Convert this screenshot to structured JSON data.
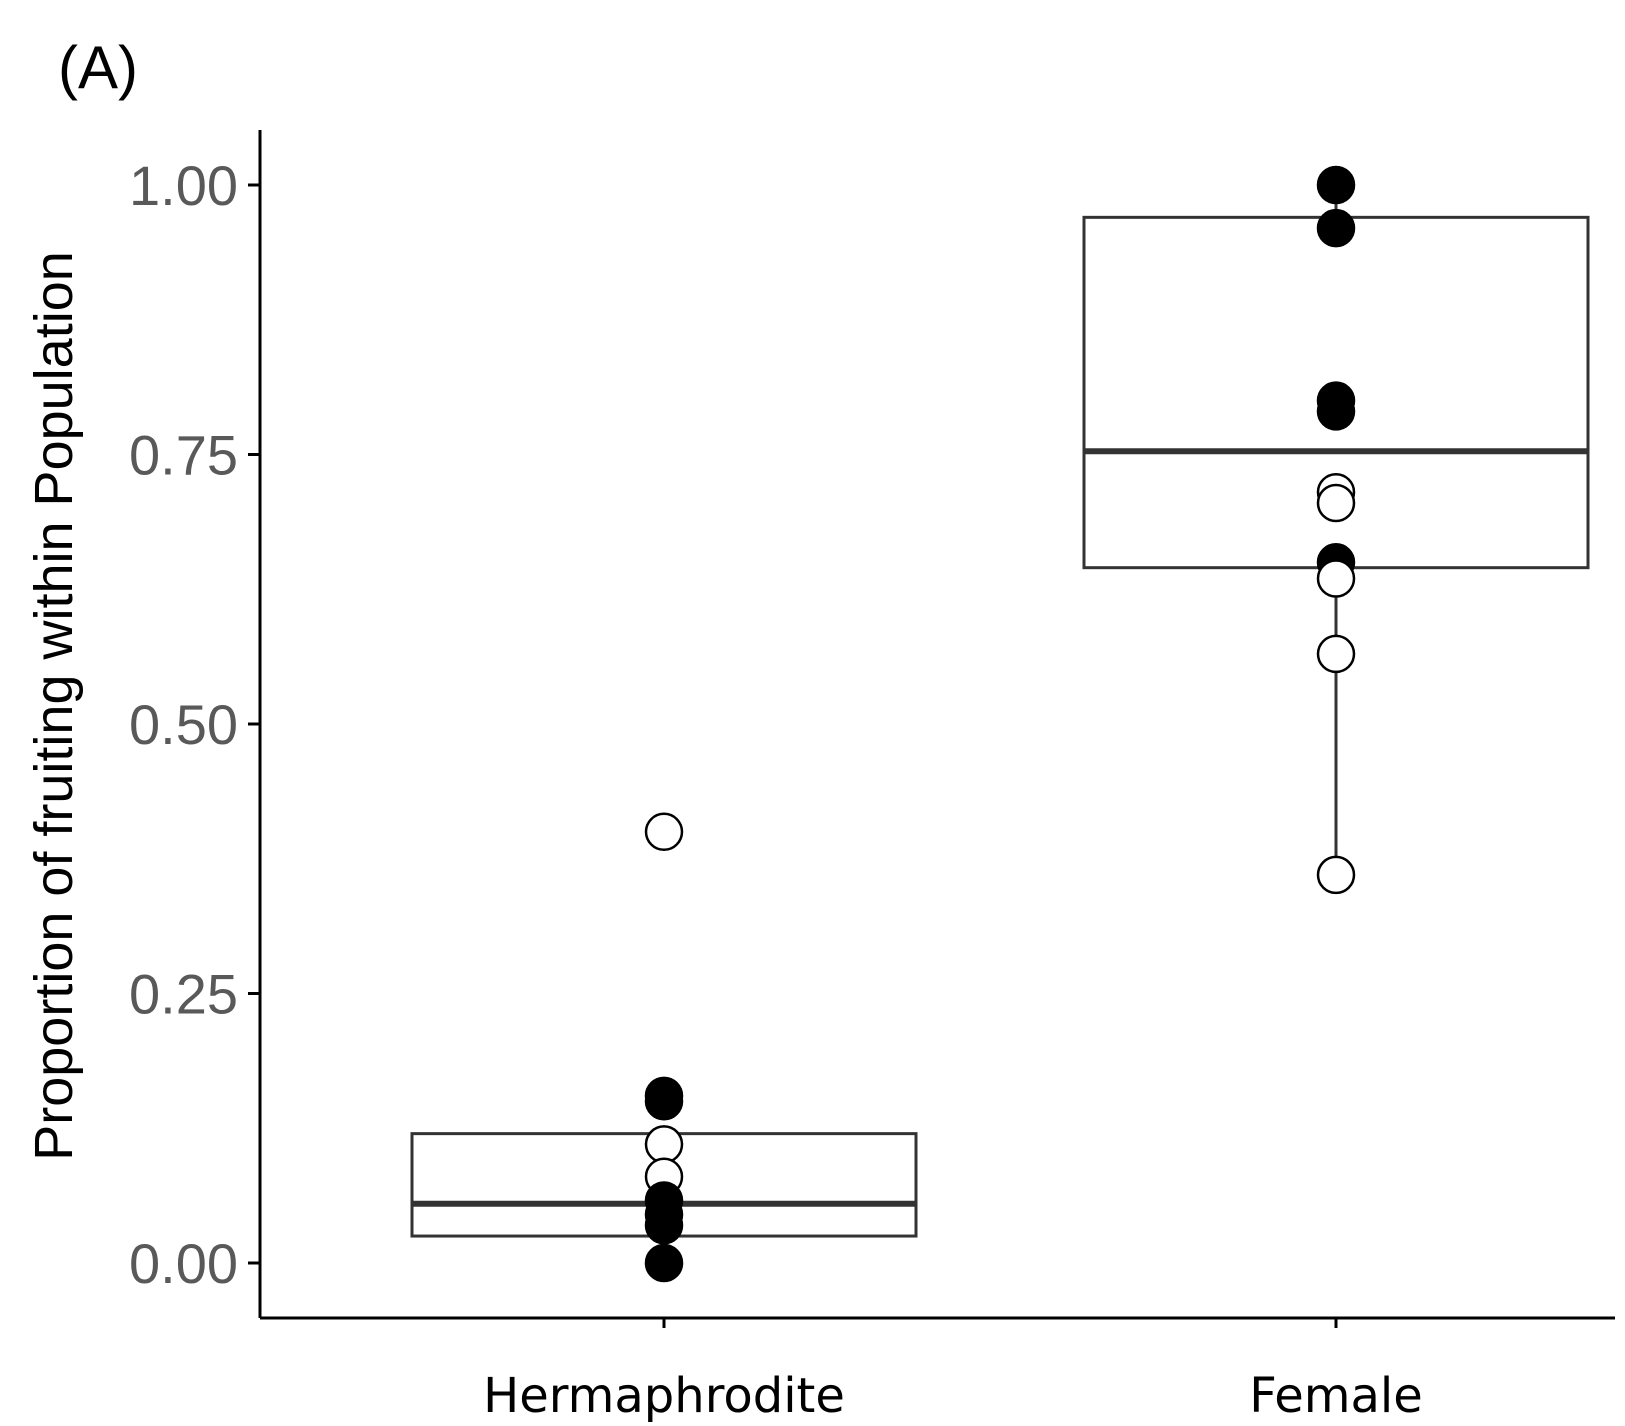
{
  "panel_label": "(A)",
  "colors": {
    "axis": "#000000",
    "box": "#333333",
    "tick_text": "#595959",
    "filled_point": "#000000",
    "open_point_fill": "#ffffff"
  },
  "chart_data": {
    "type": "box",
    "title": "",
    "xlabel": "",
    "ylabel": "Proportion of fruiting within Population",
    "ylim": [
      -0.05,
      1.05
    ],
    "yticks": [
      {
        "value": 0.0,
        "label": "0.00"
      },
      {
        "value": 0.25,
        "label": "0.25"
      },
      {
        "value": 0.5,
        "label": "0.50"
      },
      {
        "value": 0.75,
        "label": "0.75"
      },
      {
        "value": 1.0,
        "label": "1.00"
      }
    ],
    "categories": [
      "Hermaphrodite",
      "Female"
    ],
    "boxes": [
      {
        "category": "Hermaphrodite",
        "q1": 0.025,
        "median": 0.055,
        "q3": 0.12,
        "whisker_low": 0.0,
        "whisker_high": 0.12
      },
      {
        "category": "Female",
        "q1": 0.645,
        "median": 0.753,
        "q3": 0.97,
        "whisker_low": 0.36,
        "whisker_high": 1.0
      }
    ],
    "points": [
      {
        "category": "Hermaphrodite",
        "value": 0.4,
        "filled": false
      },
      {
        "category": "Hermaphrodite",
        "value": 0.155,
        "filled": true
      },
      {
        "category": "Hermaphrodite",
        "value": 0.15,
        "filled": true
      },
      {
        "category": "Hermaphrodite",
        "value": 0.11,
        "filled": false
      },
      {
        "category": "Hermaphrodite",
        "value": 0.08,
        "filled": false
      },
      {
        "category": "Hermaphrodite",
        "value": 0.058,
        "filled": true
      },
      {
        "category": "Hermaphrodite",
        "value": 0.045,
        "filled": true
      },
      {
        "category": "Hermaphrodite",
        "value": 0.035,
        "filled": true
      },
      {
        "category": "Hermaphrodite",
        "value": 0.0,
        "filled": true
      },
      {
        "category": "Female",
        "value": 1.0,
        "filled": true
      },
      {
        "category": "Female",
        "value": 0.96,
        "filled": true
      },
      {
        "category": "Female",
        "value": 0.8,
        "filled": true
      },
      {
        "category": "Female",
        "value": 0.79,
        "filled": true
      },
      {
        "category": "Female",
        "value": 0.715,
        "filled": false
      },
      {
        "category": "Female",
        "value": 0.705,
        "filled": false
      },
      {
        "category": "Female",
        "value": 0.65,
        "filled": true
      },
      {
        "category": "Female",
        "value": 0.635,
        "filled": false
      },
      {
        "category": "Female",
        "value": 0.565,
        "filled": false
      },
      {
        "category": "Female",
        "value": 0.36,
        "filled": false
      }
    ]
  }
}
